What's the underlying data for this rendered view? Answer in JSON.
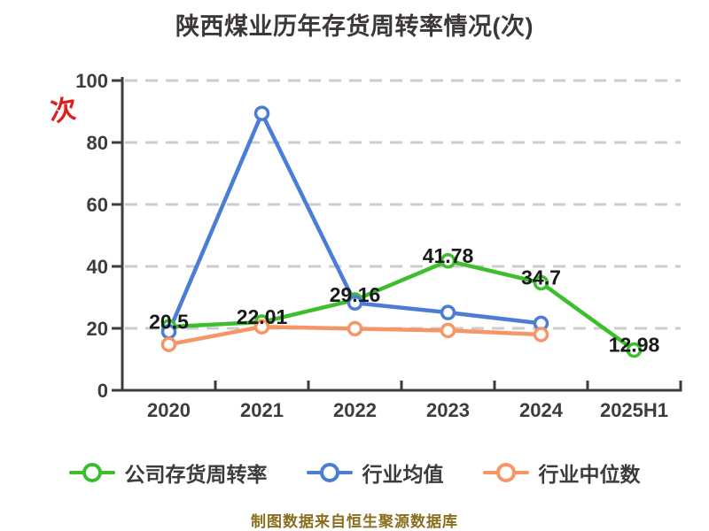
{
  "title": "陕西煤业历年存货周转率情况(次)",
  "y_axis_unit": "次",
  "footer": "制图数据来自恒生聚源数据库",
  "colors": {
    "company_series": "#3cbe2d",
    "industry_mean_series": "#4b7dd7",
    "industry_median_series": "#f59664",
    "title_text": "#3d3838",
    "axis_line": "#3d3d3d",
    "axis_text": "#3d3d3d",
    "data_label_text": "#1a1a1a",
    "gridline": "#cccccc",
    "unit_mark": "#de1f1f",
    "footer_text": "#8b6d1e",
    "marker_fill": "#ffffff"
  },
  "chart_data": {
    "type": "line",
    "title": "陕西煤业历年存货周转率情况(次)",
    "categories": [
      "2020",
      "2021",
      "2022",
      "2023",
      "2024",
      "2025H1"
    ],
    "series": [
      {
        "name": "公司存货周转率",
        "color": "#3cbe2d",
        "values": [
          20.5,
          22.01,
          29.16,
          41.78,
          34.7,
          12.98
        ],
        "labels": [
          "20.5",
          "22.01",
          "29.16",
          "41.78",
          "34.7",
          "12.98"
        ]
      },
      {
        "name": "行业均值",
        "color": "#4b7dd7",
        "values": [
          18.9,
          89.4,
          28.2,
          25.1,
          21.6,
          null
        ]
      },
      {
        "name": "行业中位数",
        "color": "#f59664",
        "values": [
          14.8,
          20.5,
          19.9,
          19.3,
          18,
          null
        ]
      }
    ],
    "xlabel": "",
    "ylabel": "次",
    "ylim": [
      0,
      100
    ],
    "yticks": [
      0,
      20,
      40,
      60,
      80,
      100
    ],
    "grid": "horizontal-dashed",
    "legend_position": "bottom"
  }
}
